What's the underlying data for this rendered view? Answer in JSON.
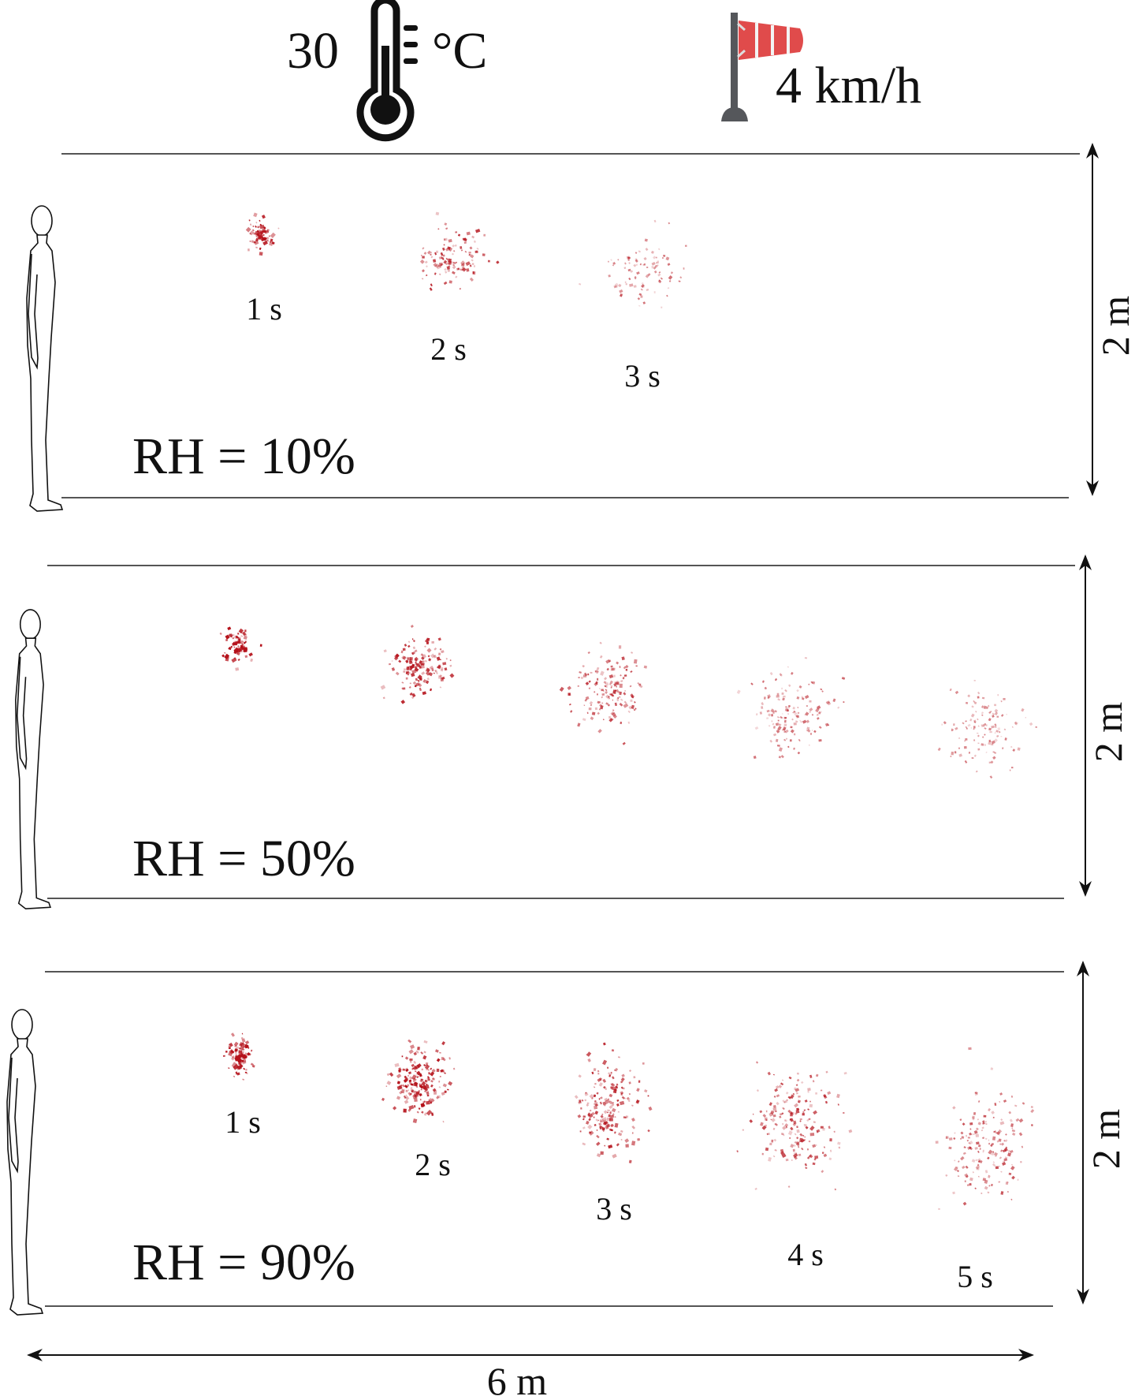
{
  "conditions": {
    "temperature_value": "30",
    "temperature_unit": "°C",
    "wind_speed": "4 km/h",
    "icons": [
      "thermometer-icon",
      "windsock-icon",
      "person-silhouette-icon"
    ]
  },
  "panels": [
    {
      "rh_label": "RH = 10%",
      "height_label": "2 m",
      "time_labels": [
        "1 s",
        "2 s",
        "3 s"
      ]
    },
    {
      "rh_label": "RH = 50%",
      "height_label": "2 m",
      "time_labels": []
    },
    {
      "rh_label": "RH = 90%",
      "height_label": "2 m",
      "time_labels": [
        "1 s",
        "2 s",
        "3 s",
        "4 s",
        "5 s"
      ]
    }
  ],
  "width_label": "6 m",
  "colors": {
    "droplet": "#b5121b",
    "windsock": "#e04b4b",
    "pole": "#55575b",
    "lines": "#555555"
  }
}
